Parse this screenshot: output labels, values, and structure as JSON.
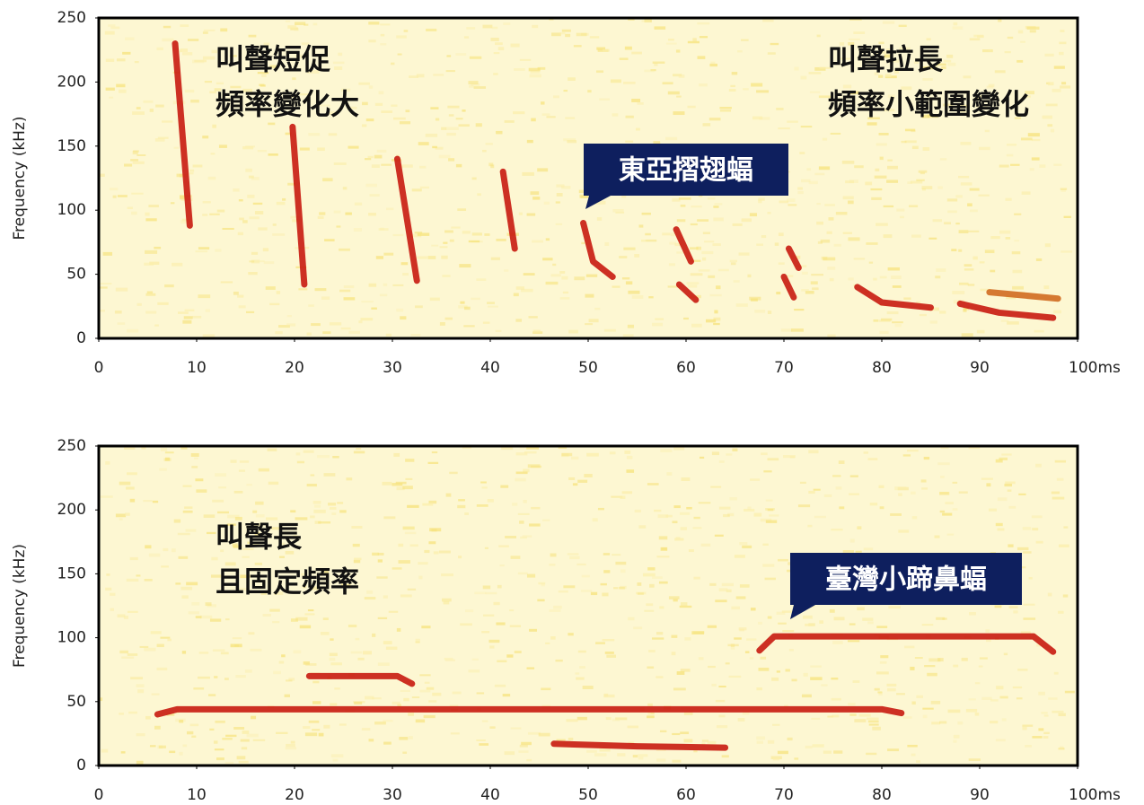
{
  "chart_data": [
    {
      "type": "spectrogram",
      "y_label": "Frequency (kHz)",
      "xlim": [
        0,
        100
      ],
      "xticks": [
        0,
        10,
        20,
        30,
        40,
        50,
        60,
        70,
        80,
        90,
        {
          "value": 100,
          "label": "100ms"
        }
      ],
      "ylim": [
        0,
        250
      ],
      "yticks": [
        0,
        50,
        100,
        150,
        200,
        250
      ],
      "annotations": [
        "叫聲短促",
        "頻率變化大",
        "叫聲拉長",
        "頻率小範圍變化"
      ],
      "callout": "東亞摺翅蝠",
      "series": [
        {
          "color": "#c81a10",
          "x": [
            7.8,
            9.3
          ],
          "values": [
            230,
            88
          ]
        },
        {
          "color": "#c81a10",
          "x": [
            19.8,
            21
          ],
          "values": [
            165,
            42
          ]
        },
        {
          "color": "#c81a10",
          "x": [
            30.5,
            32.5
          ],
          "values": [
            140,
            45
          ]
        },
        {
          "color": "#c81a10",
          "x": [
            41.3,
            42.5
          ],
          "values": [
            130,
            70
          ]
        },
        {
          "color": "#c81a10",
          "x": [
            49.5,
            50.5,
            52.5
          ],
          "values": [
            90,
            60,
            48
          ]
        },
        {
          "color": "#c81a10",
          "x": [
            59,
            60.5
          ],
          "values": [
            85,
            60
          ]
        },
        {
          "color": "#c81a10",
          "x": [
            59.3,
            61
          ],
          "values": [
            42,
            30
          ]
        },
        {
          "color": "#c81a10",
          "x": [
            70.5,
            71.5
          ],
          "values": [
            70,
            55
          ]
        },
        {
          "color": "#c81a10",
          "x": [
            70,
            71
          ],
          "values": [
            48,
            32
          ]
        },
        {
          "color": "#c81a10",
          "x": [
            77.5,
            80,
            85
          ],
          "values": [
            40,
            28,
            24
          ]
        },
        {
          "color": "#c81a10",
          "x": [
            88,
            92,
            97.5
          ],
          "values": [
            27,
            20,
            16
          ]
        },
        {
          "color": "#d06a20",
          "x": [
            91,
            98
          ],
          "values": [
            36,
            31
          ]
        }
      ]
    },
    {
      "type": "spectrogram",
      "y_label": "Frequency (kHz)",
      "xlim": [
        0,
        100
      ],
      "xticks": [
        0,
        10,
        20,
        30,
        40,
        50,
        60,
        70,
        80,
        90,
        {
          "value": 100,
          "label": "100ms"
        }
      ],
      "ylim": [
        0,
        250
      ],
      "yticks": [
        0,
        50,
        100,
        150,
        200,
        250
      ],
      "annotations": [
        "叫聲長",
        "且固定頻率"
      ],
      "callout": "臺灣小蹄鼻蝠",
      "series": [
        {
          "color": "#c81a10",
          "x": [
            6,
            8,
            80,
            82
          ],
          "values": [
            40,
            44,
            44,
            41
          ]
        },
        {
          "color": "#c81a10",
          "x": [
            21.5,
            30.5,
            32
          ],
          "values": [
            70,
            70,
            64
          ]
        },
        {
          "color": "#c81a10",
          "x": [
            46.5,
            55,
            64
          ],
          "values": [
            17,
            15,
            14
          ]
        },
        {
          "color": "#c81a10",
          "x": [
            67.5,
            69,
            95.5,
            97.5
          ],
          "values": [
            90,
            101,
            101,
            89
          ]
        }
      ]
    }
  ]
}
